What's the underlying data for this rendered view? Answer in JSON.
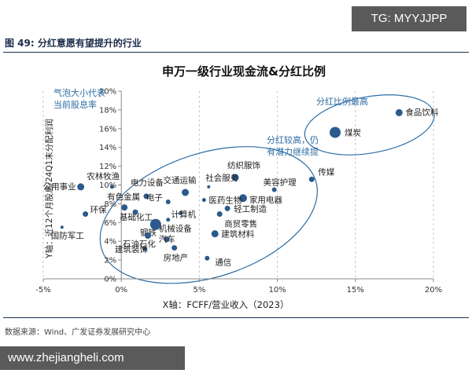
{
  "watermark_top": "TG: MYYJJPP",
  "watermark_bottom": "www.zhejiangheli.com",
  "figure_caption": "图 49:  分红意愿有望提升的行业",
  "source_note": "数据来源：Wind、广发证券发展研究中心",
  "chart_data": {
    "type": "scatter",
    "title": "申万一级行业现金流&分红比例",
    "xlabel": "X轴：FCFF/营业收入（2023）",
    "ylabel": "Y轴：近12个月股息/24Q1末分配利润",
    "xlim": [
      -5,
      20
    ],
    "ylim": [
      0,
      20
    ],
    "x_ticks": [
      "-5%",
      "0%",
      "5%",
      "10%",
      "15%",
      "20%"
    ],
    "y_ticks": [
      "0%",
      "2%",
      "4%",
      "6%",
      "8%",
      "10%",
      "12%",
      "14%",
      "16%",
      "18%",
      "20%"
    ],
    "bubble_note": "气泡大小代表\n当前股息率",
    "annotations": [
      "分红比例最高",
      "分红较高，仍\n有潜力继续提"
    ],
    "marker_color": "#2d5a8c",
    "points": [
      {
        "label": "食品饮料",
        "x": 17.8,
        "y": 17.7,
        "size": 4.5
      },
      {
        "label": "煤炭",
        "x": 13.7,
        "y": 15.6,
        "size": 7
      },
      {
        "label": "传媒",
        "x": 12.2,
        "y": 10.6,
        "size": 3.5
      },
      {
        "label": "美容护理",
        "x": 9.8,
        "y": 9.5,
        "size": 3
      },
      {
        "label": "纺织服饰",
        "x": 7.3,
        "y": 10.8,
        "size": 4.5
      },
      {
        "label": "社会服务",
        "x": 5.6,
        "y": 9.8,
        "size": 2
      },
      {
        "label": "交通运输",
        "x": 4.1,
        "y": 9.2,
        "size": 4.5
      },
      {
        "label": "家用电器",
        "x": 7.8,
        "y": 8.6,
        "size": 5
      },
      {
        "label": "医药生物",
        "x": 5.3,
        "y": 8.4,
        "size": 2.5
      },
      {
        "label": "轻工制造",
        "x": 6.8,
        "y": 7.5,
        "size": 3.5
      },
      {
        "label": "商贸零售",
        "x": 6.3,
        "y": 6.9,
        "size": 3.5
      },
      {
        "label": "建筑材料",
        "x": 6.0,
        "y": 4.8,
        "size": 4.5
      },
      {
        "label": "电力设备",
        "x": 1.6,
        "y": 8.8,
        "size": 3.5
      },
      {
        "label": "电子",
        "x": 3.0,
        "y": 8.2,
        "size": 3
      },
      {
        "label": "计算机",
        "x": 3.8,
        "y": 7.0,
        "size": 2.5
      },
      {
        "label": "机械设备",
        "x": 3.0,
        "y": 6.3,
        "size": 2.5
      },
      {
        "label": "农林牧渔",
        "x": -0.6,
        "y": 9.8,
        "size": 2.5
      },
      {
        "label": "有色金属",
        "x": 0.2,
        "y": 7.6,
        "size": 4
      },
      {
        "label": "基础化工",
        "x": 0.9,
        "y": 7.1,
        "size": 3.5
      },
      {
        "label": "公用事业",
        "x": -2.6,
        "y": 9.8,
        "size": 4.5
      },
      {
        "label": "环保",
        "x": -2.3,
        "y": 6.9,
        "size": 3.5
      },
      {
        "label": "国防军工",
        "x": -3.8,
        "y": 5.5,
        "size": 2
      },
      {
        "label": "钢铁",
        "x": 2.2,
        "y": 5.8,
        "size": 7
      },
      {
        "label": "石油石化",
        "x": 1.7,
        "y": 4.6,
        "size": 4
      },
      {
        "label": "汽车",
        "x": 2.9,
        "y": 4.2,
        "size": 3.5
      },
      {
        "label": "建筑装饰",
        "x": 1.5,
        "y": 3.2,
        "size": 3
      },
      {
        "label": "房地产",
        "x": 3.4,
        "y": 3.3,
        "size": 3.5
      },
      {
        "label": "通信",
        "x": 5.5,
        "y": 2.2,
        "size": 3
      }
    ]
  }
}
